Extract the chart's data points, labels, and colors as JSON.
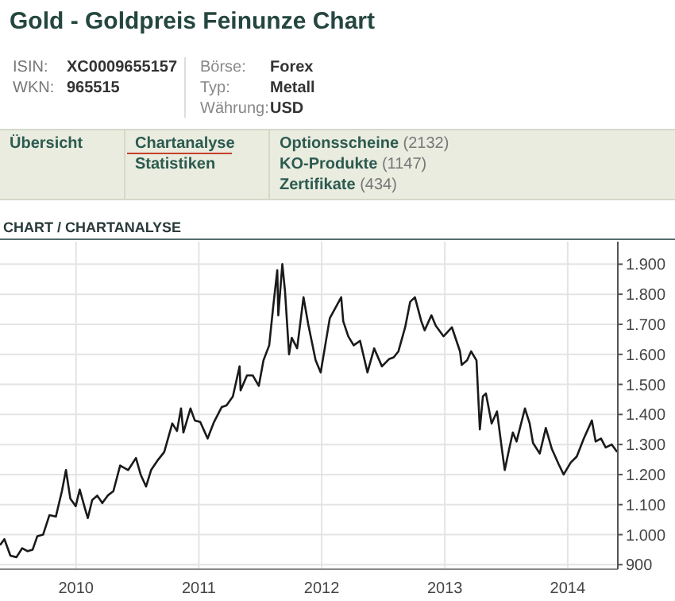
{
  "chart_data": {
    "type": "line",
    "title": "Gold - Goldpreis Feinunze Chart",
    "subtitle": "CHART / CHARTANALYSE",
    "annotations": [
      "ISIN:",
      "XC0009655157",
      "WKN:",
      "965515",
      "Börse:",
      "Forex",
      "Typ:",
      "Metall",
      "Währung:",
      "USD",
      "Übersicht",
      "Chartanalyse",
      "Statistiken",
      "Optionsscheine (2132)",
      "KO-Produkte (1147)",
      "Zertifikate (434)"
    ],
    "x": [
      "2009-05-20",
      "2009-06-02",
      "2009-06-20",
      "2009-07-08",
      "2009-07-25",
      "2009-08-10",
      "2009-08-25",
      "2009-09-08",
      "2009-09-25",
      "2009-10-14",
      "2009-11-02",
      "2009-11-20",
      "2009-12-02",
      "2009-12-15",
      "2009-12-31",
      "2010-01-12",
      "2010-01-28",
      "2010-02-05",
      "2010-02-18",
      "2010-03-05",
      "2010-03-20",
      "2010-04-05",
      "2010-04-22",
      "2010-05-12",
      "2010-06-05",
      "2010-06-28",
      "2010-07-12",
      "2010-07-28",
      "2010-08-12",
      "2010-08-30",
      "2010-09-20",
      "2010-10-14",
      "2010-10-28",
      "2010-11-09",
      "2010-11-16",
      "2010-12-07",
      "2010-12-20",
      "2011-01-05",
      "2011-01-27",
      "2011-02-15",
      "2011-03-10",
      "2011-03-24",
      "2011-04-12",
      "2011-05-02",
      "2011-05-05",
      "2011-05-24",
      "2011-06-10",
      "2011-06-28",
      "2011-07-12",
      "2011-07-29",
      "2011-08-10",
      "2011-08-22",
      "2011-08-25",
      "2011-09-06",
      "2011-09-14",
      "2011-09-26",
      "2011-10-04",
      "2011-10-20",
      "2011-11-08",
      "2011-11-22",
      "2011-12-14",
      "2011-12-29",
      "2012-01-13",
      "2012-01-25",
      "2012-02-28",
      "2012-03-05",
      "2012-03-20",
      "2012-04-05",
      "2012-04-24",
      "2012-05-16",
      "2012-06-05",
      "2012-06-28",
      "2012-07-20",
      "2012-08-02",
      "2012-08-16",
      "2012-09-05",
      "2012-09-20",
      "2012-10-04",
      "2012-10-23",
      "2012-11-02",
      "2012-11-22",
      "2012-12-05",
      "2012-12-28",
      "2013-01-22",
      "2013-02-15",
      "2013-02-20",
      "2013-03-08",
      "2013-03-20",
      "2013-04-05",
      "2013-04-15",
      "2013-04-24",
      "2013-05-03",
      "2013-05-20",
      "2013-06-05",
      "2013-06-20",
      "2013-06-28",
      "2013-07-12",
      "2013-07-22",
      "2013-08-02",
      "2013-08-27",
      "2013-09-10",
      "2013-09-20",
      "2013-10-10",
      "2013-10-28",
      "2013-11-15",
      "2013-12-05",
      "2013-12-20",
      "2014-01-10",
      "2014-01-28",
      "2014-02-18",
      "2014-03-14",
      "2014-03-25",
      "2014-04-10",
      "2014-04-24",
      "2014-05-12",
      "2014-05-28"
    ],
    "series": [
      {
        "color": "#1a1a1a",
        "values": [
          965,
          985,
          930,
          925,
          955,
          945,
          950,
          995,
          1000,
          1065,
          1060,
          1145,
          1215,
          1120,
          1095,
          1150,
          1085,
          1055,
          1115,
          1130,
          1105,
          1130,
          1145,
          1230,
          1215,
          1255,
          1200,
          1160,
          1215,
          1245,
          1275,
          1370,
          1345,
          1420,
          1340,
          1420,
          1380,
          1375,
          1320,
          1375,
          1425,
          1430,
          1460,
          1560,
          1480,
          1530,
          1530,
          1495,
          1580,
          1630,
          1760,
          1880,
          1730,
          1900,
          1810,
          1600,
          1655,
          1620,
          1790,
          1700,
          1580,
          1540,
          1640,
          1720,
          1790,
          1710,
          1660,
          1630,
          1645,
          1540,
          1620,
          1560,
          1585,
          1590,
          1610,
          1690,
          1775,
          1790,
          1710,
          1680,
          1730,
          1695,
          1660,
          1690,
          1610,
          1565,
          1580,
          1610,
          1580,
          1350,
          1460,
          1470,
          1370,
          1410,
          1280,
          1215,
          1290,
          1340,
          1310,
          1420,
          1370,
          1305,
          1270,
          1355,
          1285,
          1235,
          1200,
          1240,
          1260,
          1320,
          1380,
          1310,
          1320,
          1290,
          1300,
          1275
        ]
      }
    ],
    "xlim": [
      "2009-05-20",
      "2014-05-30"
    ],
    "xticks": [
      {
        "value": "2010-01-01",
        "label": "2010"
      },
      {
        "value": "2011-01-01",
        "label": "2011"
      },
      {
        "value": "2012-01-01",
        "label": "2012"
      },
      {
        "value": "2013-01-01",
        "label": "2013"
      },
      {
        "value": "2014-01-01",
        "label": "2014"
      }
    ],
    "ylim": [
      885,
      1975
    ],
    "yticks": [
      {
        "value": 900,
        "label": "900"
      },
      {
        "value": 1000,
        "label": "1.000"
      },
      {
        "value": 1100,
        "label": "1.100"
      },
      {
        "value": 1200,
        "label": "1.200"
      },
      {
        "value": 1300,
        "label": "1.300"
      },
      {
        "value": 1400,
        "label": "1.400"
      },
      {
        "value": 1500,
        "label": "1.500"
      },
      {
        "value": 1600,
        "label": "1.600"
      },
      {
        "value": 1700,
        "label": "1.700"
      },
      {
        "value": 1800,
        "label": "1.800"
      },
      {
        "value": 1900,
        "label": "1.900"
      }
    ],
    "grid": true,
    "marker": "none",
    "line_style": "solid"
  }
}
